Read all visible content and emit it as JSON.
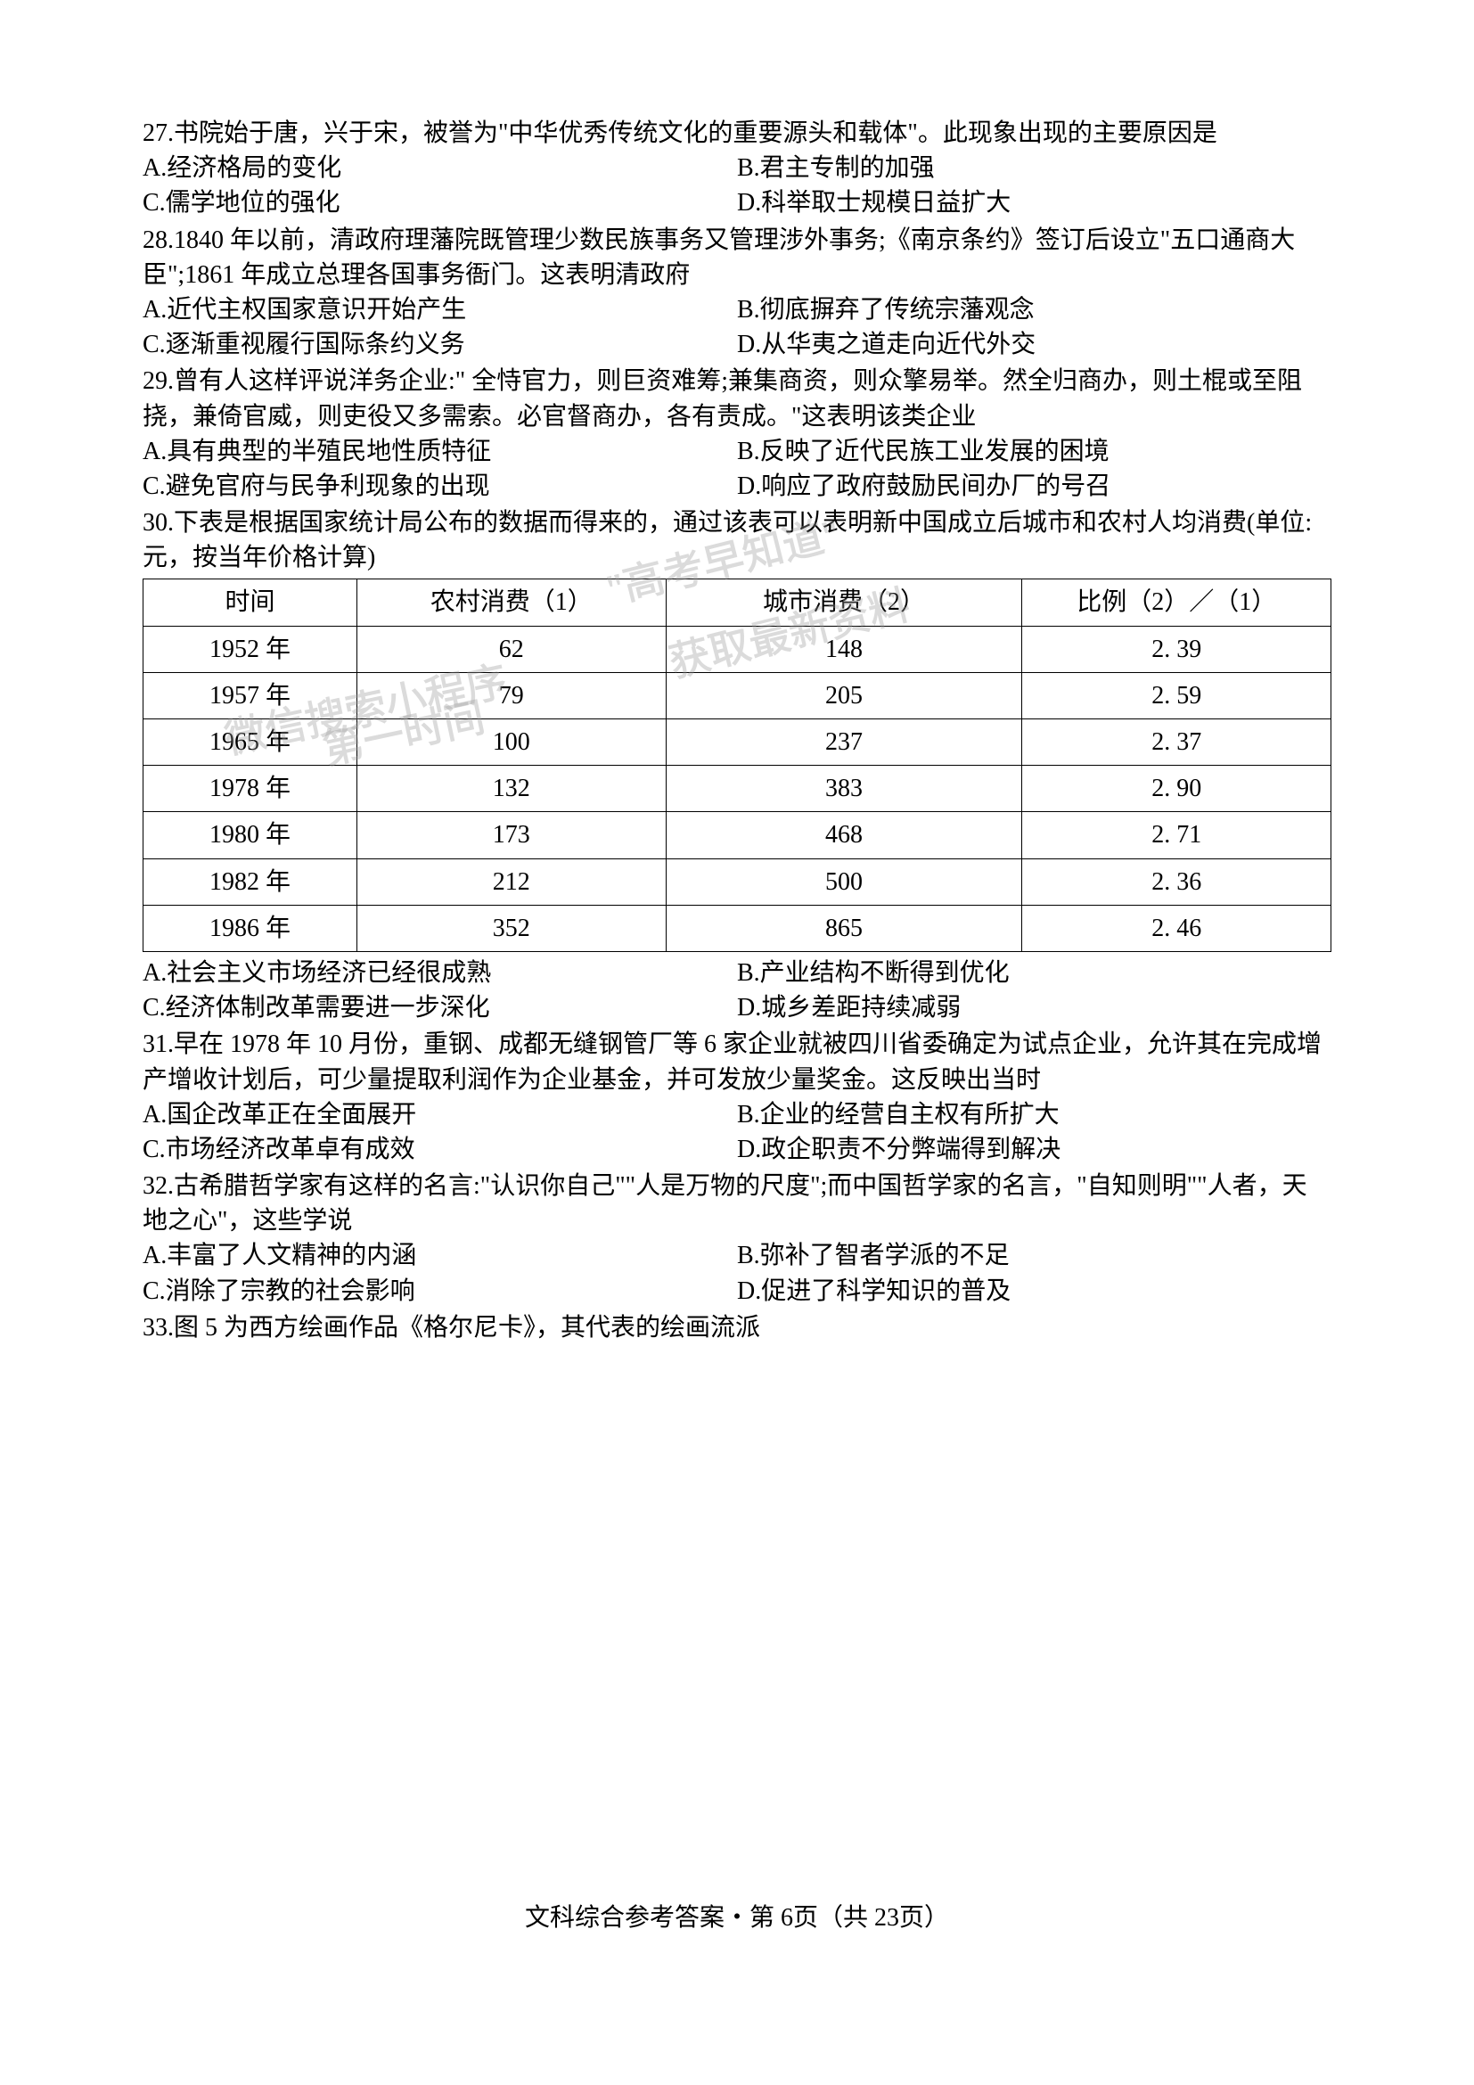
{
  "footer": "文科综合参考答案・第 6页（共 23页）",
  "q27": {
    "stem": "27.书院始于唐，兴于宋，被誉为\"中华优秀传统文化的重要源头和载体\"。此现象出现的主要原因是",
    "optA": "A.经济格局的变化",
    "optB": "B.君主专制的加强",
    "optC": "C.儒学地位的强化",
    "optD": "D.科举取士规模日益扩大"
  },
  "q28": {
    "stem": "28.1840 年以前，清政府理藩院既管理少数民族事务又管理涉外事务;《南京条约》签订后设立\"五口通商大臣\";1861 年成立总理各国事务衙门。这表明清政府",
    "optA": "A.近代主权国家意识开始产生",
    "optB": "B.彻底摒弃了传统宗藩观念",
    "optC": "C.逐渐重视履行国际条约义务",
    "optD": "D.从华夷之道走向近代外交"
  },
  "q29": {
    "stem": "29.曾有人这样评说洋务企业:\" 全恃官力，则巨资难筹;兼集商资，则众擎易举。然全归商办，则土棍或至阻挠，兼倚官威，则吏役又多需索。必官督商办，各有责成。\"这表明该类企业",
    "optA": "A.具有典型的半殖民地性质特征",
    "optB": "B.反映了近代民族工业发展的困境",
    "optC": "C.避免官府与民争利现象的出现",
    "optD": "D.响应了政府鼓励民间办厂的号召"
  },
  "q30": {
    "stem": "30.下表是根据国家统计局公布的数据而得来的，通过该表可以表明新中国成立后城市和农村人均消费(单位:元，按当年价格计算)",
    "table": {
      "headers": [
        "时间",
        "农村消费（1）",
        "城市消费（2）",
        "比例（2）／（1）"
      ],
      "rows": [
        [
          "1952 年",
          "62",
          "148",
          "2. 39"
        ],
        [
          "1957 年",
          "79",
          "205",
          "2. 59"
        ],
        [
          "1965 年",
          "100",
          "237",
          "2. 37"
        ],
        [
          "1978 年",
          "132",
          "383",
          "2. 90"
        ],
        [
          "1980 年",
          "173",
          "468",
          "2. 71"
        ],
        [
          "1982 年",
          "212",
          "500",
          "2. 36"
        ],
        [
          "1986 年",
          "352",
          "865",
          "2. 46"
        ]
      ]
    },
    "optA": "A.社会主义市场经济已经很成熟",
    "optB": "B.产业结构不断得到优化",
    "optC": "C.经济体制改革需要进一步深化",
    "optD": "D.城乡差距持续减弱"
  },
  "q31": {
    "stem": "31.早在 1978 年 10 月份，重钢、成都无缝钢管厂等 6 家企业就被四川省委确定为试点企业，允许其在完成增产增收计划后，可少量提取利润作为企业基金，并可发放少量奖金。这反映出当时",
    "optA": "A.国企改革正在全面展开",
    "optB": "B.企业的经营自主权有所扩大",
    "optC": "C.市场经济改革卓有成效",
    "optD": "D.政企职责不分弊端得到解决"
  },
  "q32": {
    "stem": "32.古希腊哲学家有这样的名言:\"认识你自己\"\"人是万物的尺度\";而中国哲学家的名言，\"自知则明\"\"人者，天地之心\"，这些学说",
    "optA": "A.丰富了人文精神的内涵",
    "optB": "B.弥补了智者学派的不足",
    "optC": "C.消除了宗教的社会影响",
    "optD": "D.促进了科学知识的普及"
  },
  "q33": {
    "stem": "33.图 5 为西方绘画作品《格尔尼卡》，其代表的绘画流派"
  },
  "watermarks": {
    "w1": "\"高考早知道\"",
    "w2": "获取最新资料",
    "w3": "微信搜索小程序",
    "w4": "第一时间"
  }
}
